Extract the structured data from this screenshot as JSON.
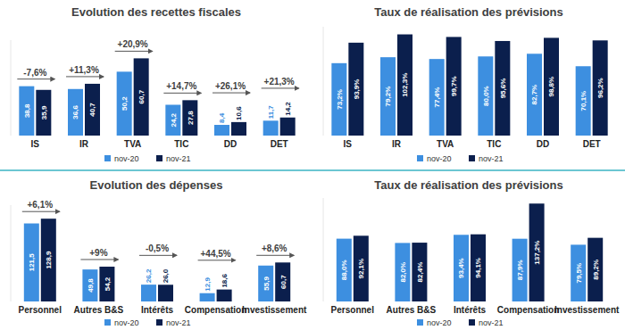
{
  "chart_data": [
    {
      "type": "bar",
      "title": "Evolution des recettes fiscales",
      "categories": [
        "IS",
        "IR",
        "TVA",
        "TIC",
        "DD",
        "DET"
      ],
      "series": [
        {
          "name": "nov-20",
          "color": "#3d8fe0",
          "values": [
            38.8,
            36.6,
            50.2,
            24.2,
            8.4,
            11.7
          ],
          "value_labels": [
            "38,8",
            "36,6",
            "50,2",
            "24,2",
            "8,4",
            "11,7"
          ]
        },
        {
          "name": "nov-21",
          "color": "#0b1f4d",
          "values": [
            35.9,
            40.7,
            60.7,
            27.8,
            10.6,
            14.2
          ],
          "value_labels": [
            "35,9",
            "40,7",
            "60,7",
            "27,8",
            "10,6",
            "14,2"
          ]
        }
      ],
      "annotations": [
        "-7,6%",
        "+11,3%",
        "+20,9%",
        "+14,7%",
        "+26,1%",
        "+21,3%"
      ],
      "ylim": [
        0,
        75
      ],
      "data_labels": true,
      "tick_labels": "x",
      "legend": "bottom"
    },
    {
      "type": "bar",
      "title": "Taux de réalisation des prévisions",
      "categories": [
        "IS",
        "IR",
        "TVA",
        "TIC",
        "DD",
        "DET"
      ],
      "series": [
        {
          "name": "nov-20",
          "color": "#3d8fe0",
          "values": [
            73.2,
            79.2,
            77.4,
            80.0,
            82.7,
            70.1
          ],
          "value_labels": [
            "73,2%",
            "79,2%",
            "77,4%",
            "80,0%",
            "82,7%",
            "70,1%"
          ]
        },
        {
          "name": "nov-21",
          "color": "#0b1f4d",
          "values": [
            93.9,
            102.3,
            99.7,
            95.6,
            98.8,
            96.2
          ],
          "value_labels": [
            "93,9%",
            "102,3%",
            "99,7%",
            "95,6%",
            "98,8%",
            "96,2%"
          ]
        }
      ],
      "ylim": [
        0,
        110
      ],
      "data_labels": true,
      "tick_labels": "x",
      "legend": "bottom"
    },
    {
      "type": "bar",
      "title": "Evolution des dépenses",
      "categories": [
        "Personnel",
        "Autres B&S",
        "Intérêts",
        "Compensation",
        "Investissement"
      ],
      "series": [
        {
          "name": "nov-20",
          "color": "#3d8fe0",
          "values": [
            121.5,
            49.8,
            26.2,
            12.9,
            55.9
          ],
          "value_labels": [
            "121,5",
            "49,8",
            "26,2",
            "12,9",
            "55,9"
          ]
        },
        {
          "name": "nov-21",
          "color": "#0b1f4d",
          "values": [
            128.9,
            54.2,
            26.0,
            18.6,
            60.7
          ],
          "value_labels": [
            "128,9",
            "54,2",
            "26,0",
            "18,6",
            "60,7"
          ]
        }
      ],
      "annotations": [
        "+6,1%",
        "+9%",
        "-0,5%",
        "+44,5%",
        "+8,6%"
      ],
      "ylim": [
        0,
        150
      ],
      "data_labels": true,
      "tick_labels": "x",
      "legend": "bottom"
    },
    {
      "type": "bar",
      "title": "Taux de réalisation des prévisions",
      "categories": [
        "Personnel",
        "Autres B&S",
        "Intérêts",
        "Compensation",
        "Investissement"
      ],
      "series": [
        {
          "name": "nov-20",
          "color": "#3d8fe0",
          "values": [
            88.0,
            82.0,
            93.4,
            87.9,
            79.5
          ],
          "value_labels": [
            "88,0%",
            "82,0%",
            "93,4%",
            "87,9%",
            "79,5%"
          ]
        },
        {
          "name": "nov-21",
          "color": "#0b1f4d",
          "values": [
            92.1,
            82.4,
            94.1,
            137.2,
            89.2
          ],
          "value_labels": [
            "92,1%",
            "82,4%",
            "94,1%",
            "137,2%",
            "89,2%"
          ]
        }
      ],
      "ylim": [
        0,
        145
      ],
      "data_labels": true,
      "tick_labels": "x",
      "legend": "bottom"
    }
  ]
}
